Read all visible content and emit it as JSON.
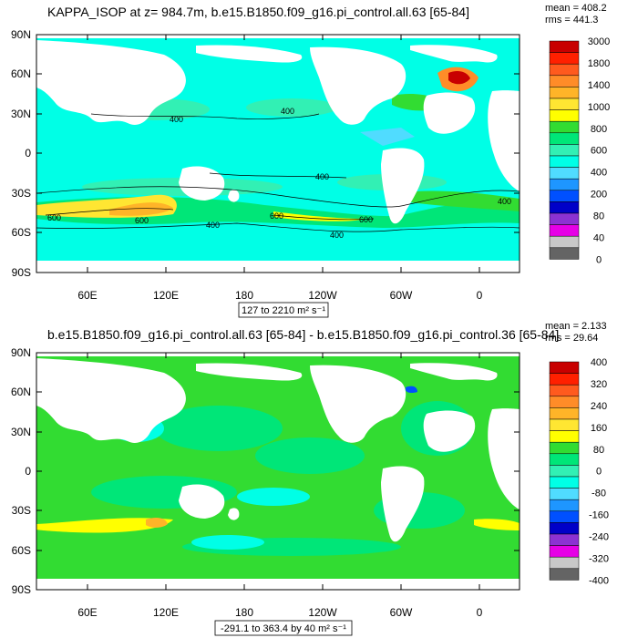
{
  "chart_data": [
    {
      "type": "heatmap",
      "title": "KAPPA_ISOP at z= 984.7m, b.e15.B1850.f09_g16.pi_control.all.63 [65-84]",
      "stats": {
        "mean": "mean = 408.2",
        "rms": "rms = 441.3"
      },
      "lat_ticks": [
        "90N",
        "60N",
        "30N",
        "0",
        "30S",
        "60S",
        "90S"
      ],
      "lon_ticks": [
        "60E",
        "120E",
        "180",
        "120W",
        "60W",
        "0"
      ],
      "colorbar_labels": [
        "3000",
        "1800",
        "1400",
        "1000",
        "800",
        "600",
        "400",
        "200",
        "80",
        "40",
        "0"
      ],
      "colorbar_colors": [
        "#c80000",
        "#ff2000",
        "#ff5a1e",
        "#ff8c28",
        "#ffb428",
        "#ffe632",
        "#ffff00",
        "#32dc32",
        "#00e678",
        "#32f0b4",
        "#00ffe6",
        "#50dcff",
        "#1e96ff",
        "#0050ff",
        "#0000c8",
        "#8c32d2",
        "#e600e6",
        "#c8c8c8",
        "#646464"
      ],
      "contour_labels": [
        "400",
        "400",
        "400",
        "400",
        "400",
        "600",
        "600",
        "600",
        "600",
        "400"
      ],
      "range_text": "127 to 2210 m² s⁻¹",
      "colors": {
        "background": "#00ffe6",
        "tint": "#32f0b4",
        "land": "#ffffff"
      }
    },
    {
      "type": "heatmap",
      "title": "b.e15.B1850.f09_g16.pi_control.all.63 [65-84] - b.e15.B1850.f09_g16.pi_control.36 [65-84]",
      "stats": {
        "mean": "mean = 2.133",
        "rms": "rms = 29.64"
      },
      "lat_ticks": [
        "90N",
        "60N",
        "30N",
        "0",
        "30S",
        "60S",
        "90S"
      ],
      "lon_ticks": [
        "60E",
        "120E",
        "180",
        "120W",
        "60W",
        "0"
      ],
      "colorbar_labels": [
        "400",
        "320",
        "240",
        "160",
        "80",
        "0",
        "-80",
        "-160",
        "-240",
        "-320",
        "-400"
      ],
      "colorbar_colors": [
        "#c80000",
        "#ff2000",
        "#ff5a1e",
        "#ff8c28",
        "#ffb428",
        "#ffe632",
        "#ffff00",
        "#32dc32",
        "#00e678",
        "#32f0b4",
        "#00ffe6",
        "#50dcff",
        "#1e96ff",
        "#0050ff",
        "#0000c8",
        "#8c32d2",
        "#e600e6",
        "#c8c8c8",
        "#646464"
      ],
      "range_text": "-291.1 to 363.4 by 40 m² s⁻¹",
      "colors": {
        "background": "#32dc32",
        "tint": "#00e678",
        "land": "#ffffff"
      }
    }
  ]
}
